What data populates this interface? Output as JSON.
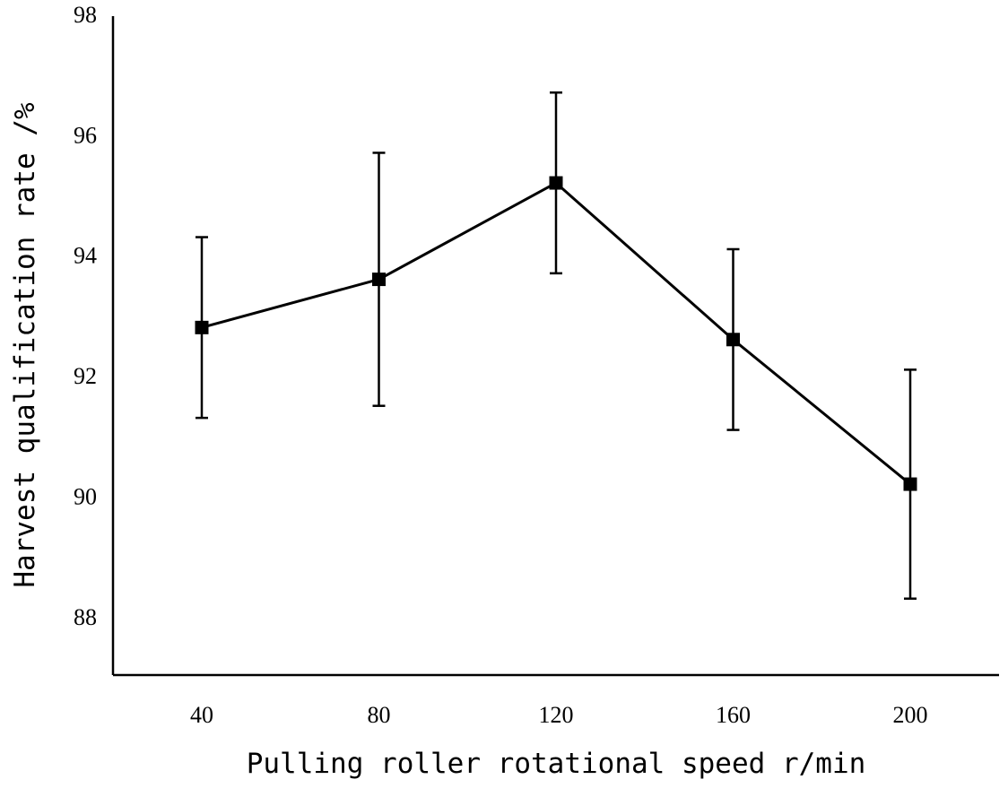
{
  "chart_data": {
    "type": "line",
    "title": "",
    "xlabel": "Pulling roller rotational speed r/min",
    "ylabel": "Harvest qualification rate /%",
    "categories": [
      "40",
      "80",
      "120",
      "160",
      "200"
    ],
    "series": [
      {
        "values": [
          92.8,
          93.6,
          95.2,
          92.6,
          90.2
        ],
        "error_low": [
          91.3,
          91.5,
          93.7,
          91.1,
          88.3
        ],
        "error_high": [
          94.3,
          95.7,
          96.7,
          94.1,
          92.1
        ]
      }
    ],
    "ylim": [
      87,
      98
    ],
    "yticks": [
      "88",
      "90",
      "92",
      "94",
      "96",
      "98"
    ],
    "grid": false,
    "legend": "none",
    "colors": {
      "line": "#000000",
      "marker": "#000000"
    }
  }
}
